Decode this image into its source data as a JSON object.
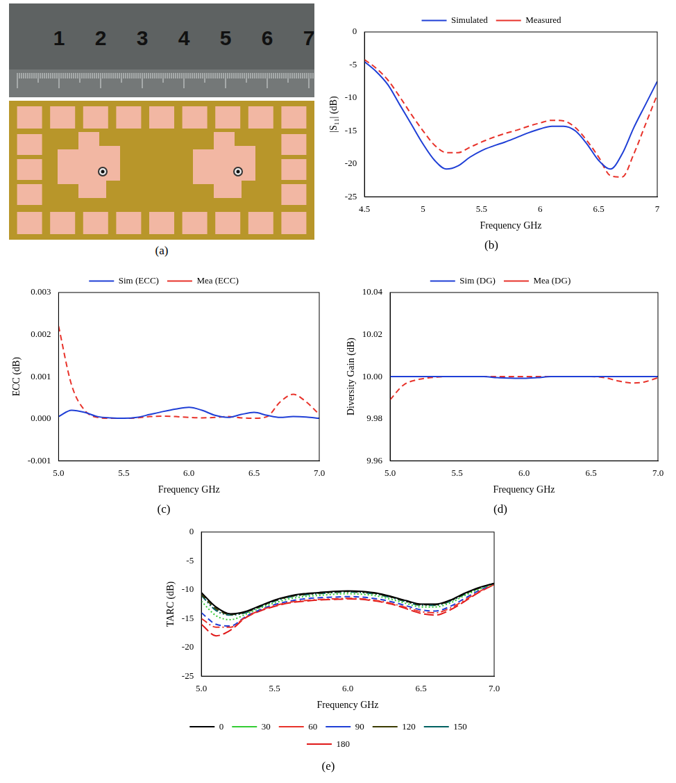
{
  "photo": {
    "caption": "(a)",
    "ruler_labels": [
      1,
      2,
      3,
      4,
      5,
      6,
      7
    ]
  },
  "chart_data": [
    {
      "type": "line",
      "title": "(b)",
      "x_label": "Frequency GHz",
      "y_label": "|S₁₁| (dB)",
      "x": [
        4.5,
        4.6,
        4.7,
        4.8,
        4.9,
        5.0,
        5.1,
        5.2,
        5.3,
        5.4,
        5.5,
        5.6,
        5.7,
        5.8,
        5.9,
        6.0,
        6.1,
        6.2,
        6.3,
        6.4,
        6.5,
        6.6,
        6.7,
        6.8,
        6.9,
        7.0
      ],
      "series": [
        {
          "name": "Simulated",
          "color": "#1f3fd6",
          "line_style": "solid",
          "values": [
            -4.5,
            -6,
            -8,
            -11,
            -14,
            -17,
            -19.5,
            -20.8,
            -20.3,
            -19,
            -18,
            -17.3,
            -16.7,
            -16,
            -15.3,
            -14.7,
            -14.3,
            -14.3,
            -15,
            -17,
            -19.5,
            -20.8,
            -18.5,
            -14.5,
            -11,
            -7.5
          ]
        },
        {
          "name": "Measured",
          "color": "#e8322a",
          "line_style": "dashed",
          "values": [
            -4.2,
            -5.5,
            -7.3,
            -9.8,
            -12.5,
            -15,
            -17.2,
            -18.3,
            -18.3,
            -17.5,
            -16.7,
            -16,
            -15.4,
            -14.9,
            -14.3,
            -13.8,
            -13.4,
            -13.5,
            -14.5,
            -16.5,
            -19,
            -21.8,
            -22,
            -18.5,
            -14,
            -9.5
          ]
        }
      ],
      "xlim": [
        4.5,
        7
      ],
      "xticks": [
        4.5,
        5,
        5.5,
        6,
        6.5,
        7
      ],
      "ylim": [
        -25,
        0
      ],
      "yticks": [
        -25,
        -20,
        -15,
        -10,
        -5,
        0
      ],
      "grid": false,
      "legend": "top"
    },
    {
      "type": "line",
      "title": "(c)",
      "x_label": "Frequency GHz",
      "y_label": "ECC (dB)",
      "x": [
        5.0,
        5.1,
        5.2,
        5.3,
        5.4,
        5.5,
        5.6,
        5.7,
        5.8,
        5.9,
        6.0,
        6.1,
        6.2,
        6.3,
        6.4,
        6.5,
        6.6,
        6.7,
        6.8,
        6.9,
        7.0
      ],
      "series": [
        {
          "name": "Sim (ECC)",
          "color": "#1f3fd6",
          "line_style": "solid",
          "values": [
            5e-05,
            0.0002,
            0.00015,
            5e-05,
            2e-05,
            1e-05,
            3e-05,
            0.0001,
            0.00017,
            0.00023,
            0.00027,
            0.0002,
            8e-05,
            3e-05,
            0.0001,
            0.00015,
            8e-05,
            3e-05,
            5e-05,
            4e-05,
            1e-05
          ]
        },
        {
          "name": "Mea (ECC)",
          "color": "#e8322a",
          "line_style": "dashed",
          "values": [
            0.0022,
            0.0008,
            0.0002,
            3e-05,
            1e-05,
            1e-05,
            2e-05,
            5e-05,
            6e-05,
            5e-05,
            3e-05,
            2e-05,
            3e-05,
            5e-05,
            2e-05,
            1e-05,
            5e-05,
            0.0004,
            0.00058,
            0.0004,
            0.0001
          ]
        }
      ],
      "xlim": [
        5,
        7
      ],
      "xticks": [
        {
          "value": 5,
          "label": "5.0"
        },
        5.5,
        {
          "value": 6,
          "label": "6.0"
        },
        6.5,
        {
          "value": 7,
          "label": "7.0"
        }
      ],
      "ylim": [
        -0.001,
        0.003
      ],
      "yticks": [
        -0.001,
        {
          "value": 0,
          "label": "0.000"
        },
        0.001,
        0.002,
        0.003
      ],
      "grid": false,
      "legend": "top"
    },
    {
      "type": "line",
      "title": "(d)",
      "x_label": "Frequency GHz",
      "y_label": "Diversity Gain (dB)",
      "x": [
        5.0,
        5.1,
        5.2,
        5.3,
        5.4,
        5.5,
        5.6,
        5.7,
        5.8,
        5.9,
        6.0,
        6.1,
        6.2,
        6.3,
        6.4,
        6.5,
        6.6,
        6.7,
        6.8,
        6.9,
        7.0
      ],
      "series": [
        {
          "name": "Sim (DG)",
          "color": "#1f3fd6",
          "line_style": "solid",
          "values": [
            10,
            10,
            10,
            10,
            10,
            10,
            10,
            10,
            9.9995,
            9.9993,
            9.9992,
            9.9995,
            10,
            10,
            10,
            10,
            10,
            10,
            10,
            10,
            10
          ]
        },
        {
          "name": "Mea (DG)",
          "color": "#e8322a",
          "line_style": "dashed",
          "values": [
            9.989,
            9.996,
            9.9985,
            9.9995,
            10,
            10,
            10,
            10,
            10,
            10,
            10,
            10,
            10,
            10,
            10,
            10,
            9.9995,
            9.998,
            9.997,
            9.9975,
            9.9995
          ]
        }
      ],
      "xlim": [
        5,
        7
      ],
      "xticks": [
        {
          "value": 5,
          "label": "5.0"
        },
        5.5,
        {
          "value": 6,
          "label": "6.0"
        },
        6.5,
        {
          "value": 7,
          "label": "7.0"
        }
      ],
      "ylim": [
        9.96,
        10.04
      ],
      "yticks": [
        9.96,
        9.98,
        {
          "value": 10,
          "label": "10.00"
        },
        10.02,
        10.04
      ],
      "grid": false,
      "legend": "top"
    },
    {
      "type": "line",
      "title": "(e)",
      "x_label": "Frequency GHz",
      "y_label": "TARC (dB)",
      "x": [
        5.0,
        5.1,
        5.2,
        5.3,
        5.4,
        5.5,
        5.6,
        5.7,
        5.8,
        5.9,
        6.0,
        6.1,
        6.2,
        6.3,
        6.4,
        6.5,
        6.6,
        6.7,
        6.8,
        6.9,
        7.0
      ],
      "series": [
        {
          "name": "0",
          "color": "#000000",
          "line_style": "solid",
          "values": [
            -10.5,
            -13,
            -14.2,
            -13.8,
            -12.8,
            -11.8,
            -11.1,
            -10.7,
            -10.5,
            -10.3,
            -10.2,
            -10.3,
            -10.6,
            -11.2,
            -11.9,
            -12.5,
            -12.5,
            -11.8,
            -10.6,
            -9.6,
            -8.9
          ]
        },
        {
          "name": "30",
          "color": "#33cc33",
          "line_style": "dotted",
          "values": [
            -12,
            -14.5,
            -15.2,
            -14.3,
            -13.2,
            -12.3,
            -11.6,
            -11.2,
            -11,
            -10.8,
            -10.7,
            -10.8,
            -11.1,
            -11.7,
            -12.4,
            -13,
            -13,
            -12.3,
            -11,
            -9.9,
            -9
          ]
        },
        {
          "name": "60",
          "color": "#e8322a",
          "line_style": "dashdot",
          "values": [
            -15,
            -16.5,
            -16.5,
            -14.8,
            -13.6,
            -12.8,
            -12.2,
            -11.9,
            -11.7,
            -11.6,
            -11.5,
            -11.6,
            -11.9,
            -12.4,
            -13.1,
            -13.8,
            -14,
            -13.2,
            -11.8,
            -10.3,
            -9.1
          ]
        },
        {
          "name": "90",
          "color": "#1f3fd6",
          "line_style": "dashed",
          "values": [
            -14,
            -16,
            -16.3,
            -14.7,
            -13.5,
            -12.6,
            -12,
            -11.6,
            -11.4,
            -11.3,
            -11.2,
            -11.3,
            -11.6,
            -12.1,
            -12.8,
            -13.5,
            -13.7,
            -12.9,
            -11.5,
            -10.1,
            -9
          ]
        },
        {
          "name": "120",
          "color": "#3a3a00",
          "line_style": "dashed",
          "values": [
            -10.8,
            -13.3,
            -14.3,
            -13.9,
            -12.9,
            -11.9,
            -11.2,
            -10.8,
            -10.6,
            -10.4,
            -10.3,
            -10.4,
            -10.7,
            -11.3,
            -12,
            -12.6,
            -12.6,
            -11.9,
            -10.7,
            -9.7,
            -8.9
          ]
        },
        {
          "name": "150",
          "color": "#006060",
          "line_style": "dashdotdot",
          "values": [
            -11,
            -13.6,
            -14.4,
            -14,
            -13,
            -12,
            -11.3,
            -10.9,
            -10.7,
            -10.5,
            -10.4,
            -10.5,
            -10.8,
            -11.4,
            -12.1,
            -12.7,
            -12.7,
            -12,
            -10.8,
            -9.7,
            -8.9
          ]
        },
        {
          "name": "180",
          "color": "#e01818",
          "line_style": "longdash",
          "values": [
            -16,
            -18,
            -17,
            -14.9,
            -13.7,
            -12.9,
            -12.3,
            -12,
            -11.8,
            -11.7,
            -11.6,
            -11.7,
            -12,
            -12.5,
            -13.3,
            -14.1,
            -14.4,
            -13.5,
            -12,
            -10.4,
            -9.1
          ]
        }
      ],
      "xlim": [
        5,
        7
      ],
      "xticks": [
        {
          "value": 5,
          "label": "5.0"
        },
        5.5,
        {
          "value": 6,
          "label": "6.0"
        },
        6.5,
        {
          "value": 7,
          "label": "7.0"
        }
      ],
      "ylim": [
        -25,
        0
      ],
      "yticks": [
        -25,
        -20,
        -15,
        -10,
        -5,
        0
      ],
      "grid": false,
      "legend": "bottom"
    }
  ]
}
